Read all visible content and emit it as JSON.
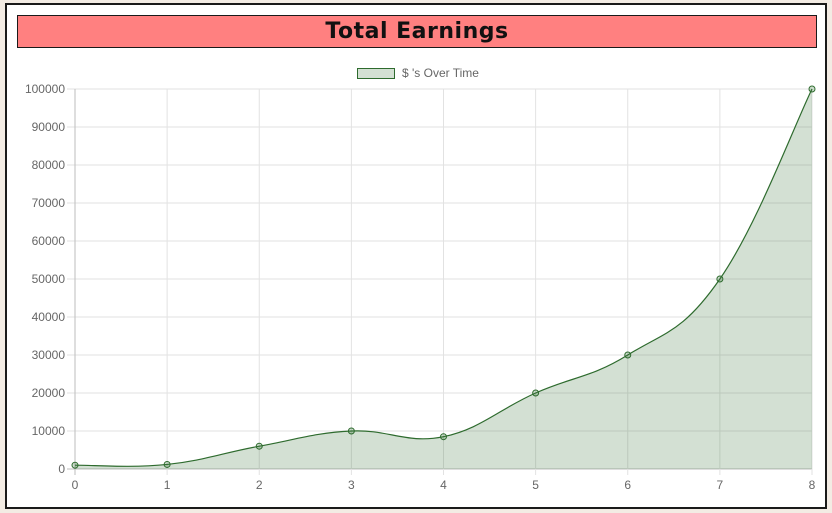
{
  "chart_data": {
    "type": "area",
    "title": "Total Earnings",
    "x": [
      0,
      1,
      2,
      3,
      4,
      5,
      6,
      7,
      8
    ],
    "series": [
      {
        "name": "$ 's Over Time",
        "values": [
          1000,
          1200,
          6000,
          10000,
          8500,
          20000,
          30000,
          50000,
          100000
        ]
      }
    ],
    "xlim": [
      0,
      8
    ],
    "ylim": [
      0,
      100000
    ],
    "yticks": [
      0,
      10000,
      20000,
      30000,
      40000,
      50000,
      60000,
      70000,
      80000,
      90000,
      100000
    ],
    "xticks": [
      0,
      1,
      2,
      3,
      4,
      5,
      6,
      7,
      8
    ],
    "grid": true,
    "legend_position": "top-center",
    "colors": {
      "line": "#2e6b2e",
      "fill": "rgba(53,116,53,0.22)",
      "title_background": "#ff8080",
      "grid": "#e2e2e2"
    }
  }
}
